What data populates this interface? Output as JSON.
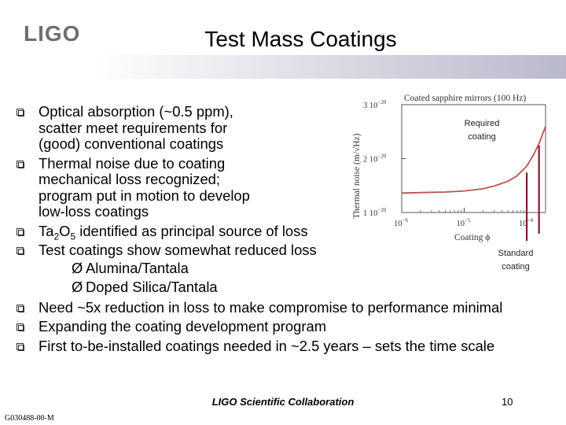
{
  "slide": {
    "logo_text": "LIGO",
    "title": "Test Mass Coatings",
    "bullets": [
      {
        "lines": [
          "Optical absorption (~0.5 ppm),",
          "scatter meet requirements for",
          "(good) conventional coatings"
        ]
      },
      {
        "lines": [
          "Thermal noise due to coating",
          "mechanical loss recognized;",
          "program put in motion to develop",
          "low-loss coatings"
        ]
      },
      {
        "pre": "Ta",
        "sub1": "2",
        "mid": "O",
        "sub2": "5",
        "post": " identified as principal source of loss"
      },
      {
        "lines": [
          "Test coatings show somewhat reduced loss"
        ],
        "subitems": [
          "Alumina/Tantala",
          "Doped Silica/Tantala"
        ]
      },
      {
        "lines": [
          "Need ~5x reduction in loss to make compromise to performance minimal"
        ]
      },
      {
        "lines": [
          "Expanding the coating development program"
        ]
      },
      {
        "lines": [
          "First to-be-installed coatings needed in ~2.5 years – sets the time scale"
        ]
      }
    ],
    "sub_marker": "Ø",
    "footer": "LIGO Scientific Collaboration",
    "page_number": "10",
    "doc_id": "G030488-00-M"
  },
  "chart_data": {
    "type": "line",
    "title": "Coated sapphire mirrors (100 Hz)",
    "xlabel": "Coating ϕ",
    "ylabel": "Thermal noise (m/√Hz)",
    "x_scale": "log",
    "xlim": [
      1e-06,
      0.0002
    ],
    "ylim": [
      1e-20,
      3e-20
    ],
    "x_ticks": [
      {
        "v": 1e-06,
        "label_base": "10",
        "label_exp": "−6"
      },
      {
        "v": 1e-05,
        "label_base": "10",
        "label_exp": "−5"
      },
      {
        "v": 0.0001,
        "label_base": "10",
        "label_exp": "−4"
      }
    ],
    "y_ticks": [
      {
        "v": 1e-20,
        "label_base": "1 10",
        "label_exp": "−20"
      },
      {
        "v": 2e-20,
        "label_base": "2 10",
        "label_exp": "−20"
      },
      {
        "v": 3e-20,
        "label_base": "3 10",
        "label_exp": "−20"
      }
    ],
    "x": [
      1e-06,
      2e-06,
      5e-06,
      1e-05,
      2e-05,
      3e-05,
      5e-05,
      7e-05,
      0.0001,
      0.00013,
      0.00016,
      0.0002
    ],
    "y": [
      1.36e-20,
      1.37e-20,
      1.38e-20,
      1.4e-20,
      1.44e-20,
      1.49e-20,
      1.58e-20,
      1.68e-20,
      1.86e-20,
      2.08e-20,
      2.3e-20,
      2.6e-20
    ],
    "line_color": "#c0504d",
    "annotations": [
      {
        "text_lines": [
          "Required",
          "coating"
        ],
        "x": 0.000157,
        "y_top": 2.24e-20
      },
      {
        "text_lines": [
          "Standard",
          "coating"
        ],
        "x": 0.0001,
        "y_top": 1.74e-20
      }
    ],
    "annotation_color": "#7a1f2a"
  }
}
